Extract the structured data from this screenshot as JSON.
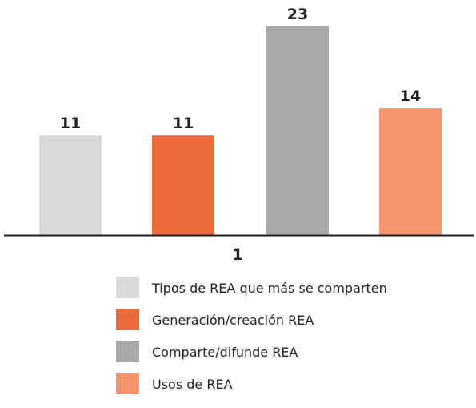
{
  "chart_data": {
    "type": "bar",
    "categories": [
      "1"
    ],
    "series": [
      {
        "name": "Tipos de REA que más se comparten",
        "values": [
          11
        ],
        "color": "#d9d9da"
      },
      {
        "name": "Generación/creación REA",
        "values": [
          11
        ],
        "color": "#ec6b3d"
      },
      {
        "name": "Comparte/difunde REA",
        "values": [
          23
        ],
        "color": "#a7a8aa"
      },
      {
        "name": "Usos de REA",
        "values": [
          14
        ],
        "color": "#f59570"
      }
    ],
    "ylim": [
      0,
      23
    ],
    "grid": false,
    "legend": "bottom",
    "data_labels": true,
    "axis_color": "#222222"
  }
}
